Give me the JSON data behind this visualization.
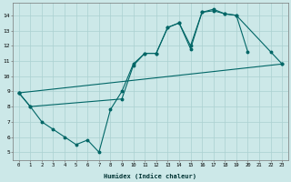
{
  "xlabel": "Humidex (Indice chaleur)",
  "bg_color": "#cce8e8",
  "grid_color": "#aad0d0",
  "line_color": "#006666",
  "xlim": [
    -0.5,
    23.5
  ],
  "ylim": [
    4.5,
    14.8
  ],
  "xticks": [
    0,
    1,
    2,
    3,
    4,
    5,
    6,
    7,
    8,
    9,
    10,
    11,
    12,
    13,
    14,
    15,
    16,
    17,
    18,
    19,
    20,
    21,
    22,
    23
  ],
  "yticks": [
    5,
    6,
    7,
    8,
    9,
    10,
    11,
    12,
    13,
    14
  ],
  "s1x": [
    0,
    1,
    2,
    3,
    4,
    5,
    6,
    7,
    8,
    9,
    10,
    11,
    12,
    13,
    14,
    15,
    16,
    17,
    18,
    19,
    20
  ],
  "s1y": [
    8.9,
    8.0,
    7.0,
    6.5,
    6.0,
    5.5,
    5.8,
    5.0,
    7.8,
    9.0,
    10.8,
    11.5,
    11.5,
    13.2,
    13.5,
    12.0,
    14.2,
    14.3,
    14.1,
    14.0,
    11.6
  ],
  "s2x": [
    0,
    1,
    9,
    10,
    11,
    12,
    13,
    14,
    15,
    16,
    17,
    18,
    19,
    22,
    23
  ],
  "s2y": [
    8.9,
    8.0,
    8.5,
    10.7,
    11.5,
    11.5,
    13.2,
    13.5,
    11.8,
    14.2,
    14.4,
    14.1,
    14.0,
    11.6,
    10.8
  ],
  "s3x": [
    0,
    23
  ],
  "s3y": [
    8.9,
    10.8
  ]
}
